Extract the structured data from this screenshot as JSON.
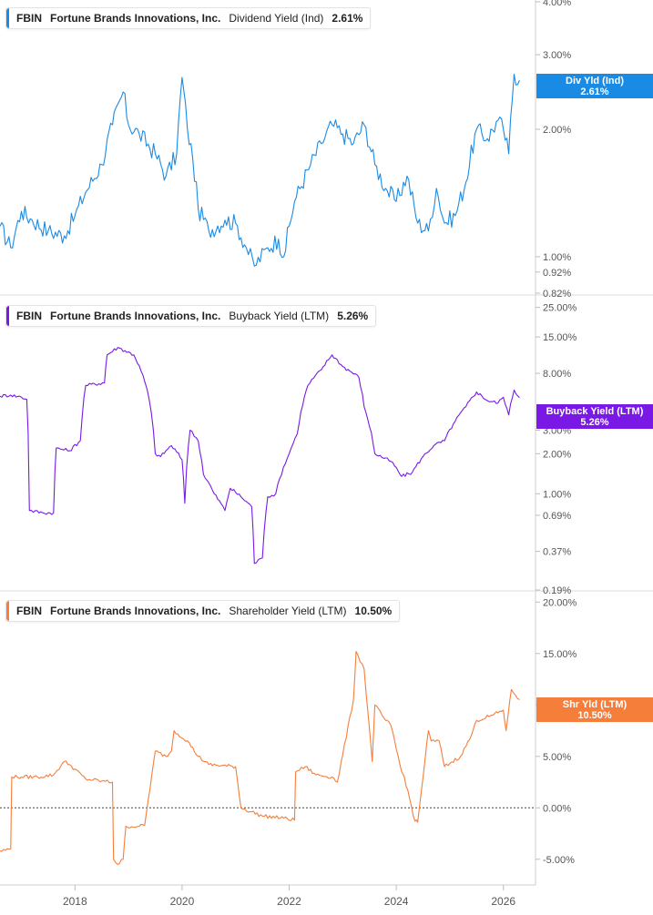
{
  "chart_data": [
    {
      "type": "line",
      "ticker": "FBIN",
      "company": "Fortune Brands Innovations, Inc.",
      "metric": "Dividend Yield (Ind)",
      "current_value": "2.61%",
      "flag_label": "Div Yld (Ind)",
      "flag_value": "2.61%",
      "color": "#1a8be5",
      "scale": "log",
      "ylim": [
        0.82,
        4.0
      ],
      "y_ticks": [
        "4.00%",
        "3.00%",
        "2.00%",
        "1.00%",
        "0.92%",
        "0.82%"
      ],
      "y_tick_values": [
        4.0,
        3.0,
        2.0,
        1.0,
        0.92,
        0.82
      ],
      "x": [
        2016.6,
        2016.8,
        2017.0,
        2017.2,
        2017.5,
        2017.8,
        2018.0,
        2018.2,
        2018.5,
        2018.7,
        2018.9,
        2019.0,
        2019.2,
        2019.5,
        2019.7,
        2019.9,
        2020.0,
        2020.1,
        2020.2,
        2020.3,
        2020.5,
        2020.8,
        2021.0,
        2021.2,
        2021.35,
        2021.6,
        2021.8,
        2021.9,
        2022.1,
        2022.4,
        2022.6,
        2022.8,
        2023.0,
        2023.2,
        2023.4,
        2023.6,
        2023.8,
        2024.0,
        2024.2,
        2024.4,
        2024.6,
        2024.75,
        2024.9,
        2025.1,
        2025.3,
        2025.5,
        2025.7,
        2025.9,
        2026.0,
        2026.1,
        2026.2,
        2026.3
      ],
      "values": [
        1.18,
        1.05,
        1.28,
        1.22,
        1.15,
        1.12,
        1.25,
        1.42,
        1.65,
        2.05,
        2.45,
        2.05,
        1.95,
        1.75,
        1.55,
        1.75,
        2.65,
        2.0,
        1.7,
        1.3,
        1.15,
        1.22,
        1.2,
        1.05,
        0.95,
        1.05,
        1.1,
        1.0,
        1.35,
        1.65,
        1.85,
        2.05,
        1.95,
        1.85,
        2.05,
        1.65,
        1.45,
        1.35,
        1.55,
        1.2,
        1.15,
        1.45,
        1.2,
        1.25,
        1.5,
        2.0,
        1.9,
        2.1,
        2.0,
        1.75,
        2.7,
        2.61
      ]
    },
    {
      "type": "line",
      "ticker": "FBIN",
      "company": "Fortune Brands Innovations, Inc.",
      "metric": "Buyback Yield (LTM)",
      "current_value": "5.26%",
      "flag_label": "Buyback Yield (LTM)",
      "flag_value": "5.26%",
      "color": "#7a19e5",
      "scale": "log",
      "ylim": [
        0.19,
        30.0
      ],
      "y_ticks": [
        "25.00%",
        "15.00%",
        "8.00%",
        "3.00%",
        "2.00%",
        "1.00%",
        "0.69%",
        "0.37%",
        "0.19%"
      ],
      "y_tick_values": [
        25.0,
        15.0,
        8.0,
        3.0,
        2.0,
        1.0,
        0.69,
        0.37,
        0.19
      ],
      "x": [
        2016.6,
        2016.8,
        2017.0,
        2017.1,
        2017.15,
        2017.4,
        2017.6,
        2017.65,
        2017.9,
        2018.1,
        2018.2,
        2018.55,
        2018.6,
        2018.8,
        2019.1,
        2019.3,
        2019.35,
        2019.5,
        2019.6,
        2019.8,
        2020.0,
        2020.05,
        2020.15,
        2020.3,
        2020.4,
        2020.6,
        2020.8,
        2020.9,
        2021.1,
        2021.3,
        2021.35,
        2021.5,
        2021.6,
        2021.75,
        2022.0,
        2022.15,
        2022.35,
        2022.6,
        2022.8,
        2023.0,
        2023.3,
        2023.4,
        2023.6,
        2023.9,
        2024.1,
        2024.3,
        2024.5,
        2024.7,
        2024.9,
        2025.1,
        2025.3,
        2025.5,
        2025.7,
        2025.9,
        2026.0,
        2026.1,
        2026.2,
        2026.3
      ],
      "values": [
        5.4,
        5.5,
        5.3,
        5.1,
        0.75,
        0.72,
        0.72,
        2.2,
        2.1,
        2.5,
        6.5,
        6.8,
        11.0,
        12.5,
        11.0,
        7.0,
        6.0,
        2.0,
        1.9,
        2.3,
        1.8,
        0.85,
        3.0,
        2.5,
        1.4,
        1.0,
        0.75,
        1.1,
        0.95,
        0.8,
        0.3,
        0.33,
        0.95,
        1.0,
        2.0,
        2.8,
        6.5,
        8.5,
        11.0,
        9.0,
        7.5,
        4.5,
        2.0,
        1.75,
        1.35,
        1.45,
        1.9,
        2.3,
        2.5,
        3.5,
        4.5,
        5.8,
        5.0,
        4.8,
        5.3,
        3.9,
        6.0,
        5.26
      ]
    },
    {
      "type": "line",
      "ticker": "FBIN",
      "company": "Fortune Brands Innovations, Inc.",
      "metric": "Shareholder Yield (LTM)",
      "current_value": "10.50%",
      "flag_label": "Shr Yld (LTM)",
      "flag_value": "10.50%",
      "color": "#f57e3b",
      "scale": "linear",
      "ylim": [
        -7.5,
        21.0
      ],
      "y_ticks": [
        "20.00%",
        "15.00%",
        "10.00%",
        "5.00%",
        "0.00%",
        "-5.00%"
      ],
      "y_tick_values": [
        20.0,
        15.0,
        10.0,
        5.0,
        0.0,
        -5.0
      ],
      "zero_line": true,
      "x": [
        2016.6,
        2016.8,
        2016.82,
        2017.0,
        2017.3,
        2017.6,
        2017.8,
        2017.9,
        2018.2,
        2018.5,
        2018.7,
        2018.72,
        2018.8,
        2018.9,
        2018.95,
        2019.2,
        2019.3,
        2019.5,
        2019.7,
        2019.8,
        2019.85,
        2020.1,
        2020.3,
        2020.5,
        2021.0,
        2021.1,
        2021.5,
        2021.9,
        2022.1,
        2022.12,
        2022.3,
        2022.5,
        2022.8,
        2022.9,
        2023.2,
        2023.25,
        2023.4,
        2023.55,
        2023.6,
        2023.8,
        2023.9,
        2024.1,
        2024.15,
        2024.35,
        2024.4,
        2024.6,
        2024.65,
        2024.8,
        2024.9,
        2025.2,
        2025.4,
        2025.5,
        2025.8,
        2026.0,
        2026.05,
        2026.15,
        2026.3
      ],
      "values": [
        -4.2,
        -4.0,
        3.0,
        3.0,
        3.0,
        3.2,
        4.5,
        4.2,
        2.8,
        2.6,
        2.5,
        -5.0,
        -5.5,
        -5.0,
        -1.8,
        -1.8,
        -1.7,
        5.5,
        5.0,
        5.5,
        7.5,
        6.5,
        5.0,
        4.2,
        4.0,
        0.0,
        -0.8,
        -1.0,
        -1.2,
        3.5,
        4.0,
        3.2,
        3.0,
        2.5,
        10.5,
        15.2,
        13.5,
        4.5,
        10.0,
        8.5,
        8.0,
        3.5,
        3.0,
        -1.3,
        -1.4,
        7.5,
        6.5,
        6.5,
        4.0,
        5.0,
        7.0,
        8.5,
        9.0,
        9.5,
        7.5,
        11.5,
        10.5
      ]
    }
  ],
  "x_axis": {
    "ticks": [
      "2018",
      "2020",
      "2022",
      "2024",
      "2026"
    ],
    "tick_values": [
      2018,
      2020,
      2022,
      2024,
      2026
    ],
    "range": [
      2016.6,
      2026.6
    ]
  }
}
